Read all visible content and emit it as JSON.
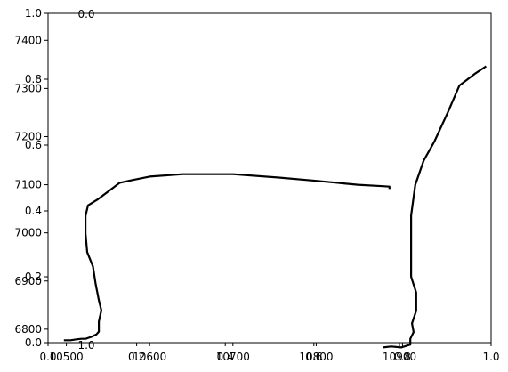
{
  "chart_data": {
    "type": "line",
    "title": "",
    "xlabel": "",
    "ylabel": "",
    "grid": false,
    "legend": "none",
    "line_color": "#000000",
    "frame": {
      "x_ticks": [
        "0.0",
        "0.2",
        "0.4",
        "0.6",
        "0.8",
        "1.0"
      ],
      "y_ticks": [
        "0.0",
        "0.2",
        "0.4",
        "0.6",
        "0.8",
        "1.0"
      ]
    },
    "data_axes": {
      "xlim": [
        10478,
        11010
      ],
      "ylim": [
        6772,
        7456
      ],
      "x_ticks": [
        "10500",
        "10600",
        "10700",
        "10800",
        "10900"
      ],
      "y_ticks": [
        "6800",
        "6900",
        "7000",
        "7100",
        "7200",
        "7300",
        "7400"
      ]
    },
    "angle_axes": {
      "top_label": "0.0",
      "bottom_label": "1.0"
    },
    "series": [
      {
        "values": [
          [
            10497,
            6777
          ],
          [
            10505,
            6777
          ],
          [
            10513,
            6779
          ],
          [
            10518,
            6780
          ],
          [
            10523,
            6780
          ],
          [
            10530,
            6784
          ],
          [
            10536,
            6789
          ],
          [
            10539,
            6795
          ],
          [
            10539,
            6816
          ],
          [
            10542,
            6839
          ],
          [
            10539,
            6860
          ],
          [
            10535,
            6895
          ],
          [
            10532,
            6930
          ],
          [
            10525,
            6960
          ],
          [
            10523,
            6999
          ],
          [
            10523,
            7035
          ],
          [
            10526,
            7057
          ],
          [
            10538,
            7070
          ],
          [
            10564,
            7104
          ],
          [
            10580,
            7110
          ],
          [
            10600,
            7117
          ],
          [
            10640,
            7122
          ],
          [
            10700,
            7122
          ],
          [
            10755,
            7115
          ],
          [
            10800,
            7108
          ],
          [
            10850,
            7100
          ],
          [
            10880,
            7097
          ],
          [
            10888,
            7096
          ],
          [
            10888,
            7091
          ]
        ]
      },
      {
        "values": [
          [
            10880,
            6762
          ],
          [
            10890,
            6764
          ],
          [
            10902,
            6762
          ],
          [
            10913,
            6768
          ],
          [
            10913,
            6780
          ],
          [
            10917,
            6794
          ],
          [
            10915,
            6812
          ],
          [
            10920,
            6838
          ],
          [
            10920,
            6876
          ],
          [
            10914,
            6909
          ],
          [
            10914,
            6950
          ],
          [
            10914,
            6980
          ],
          [
            10914,
            7000
          ],
          [
            10914,
            7036
          ],
          [
            10919,
            7100
          ],
          [
            10929,
            7150
          ],
          [
            10942,
            7190
          ],
          [
            10958,
            7250
          ],
          [
            10972,
            7306
          ],
          [
            10990,
            7330
          ],
          [
            11004,
            7346
          ]
        ]
      }
    ]
  }
}
